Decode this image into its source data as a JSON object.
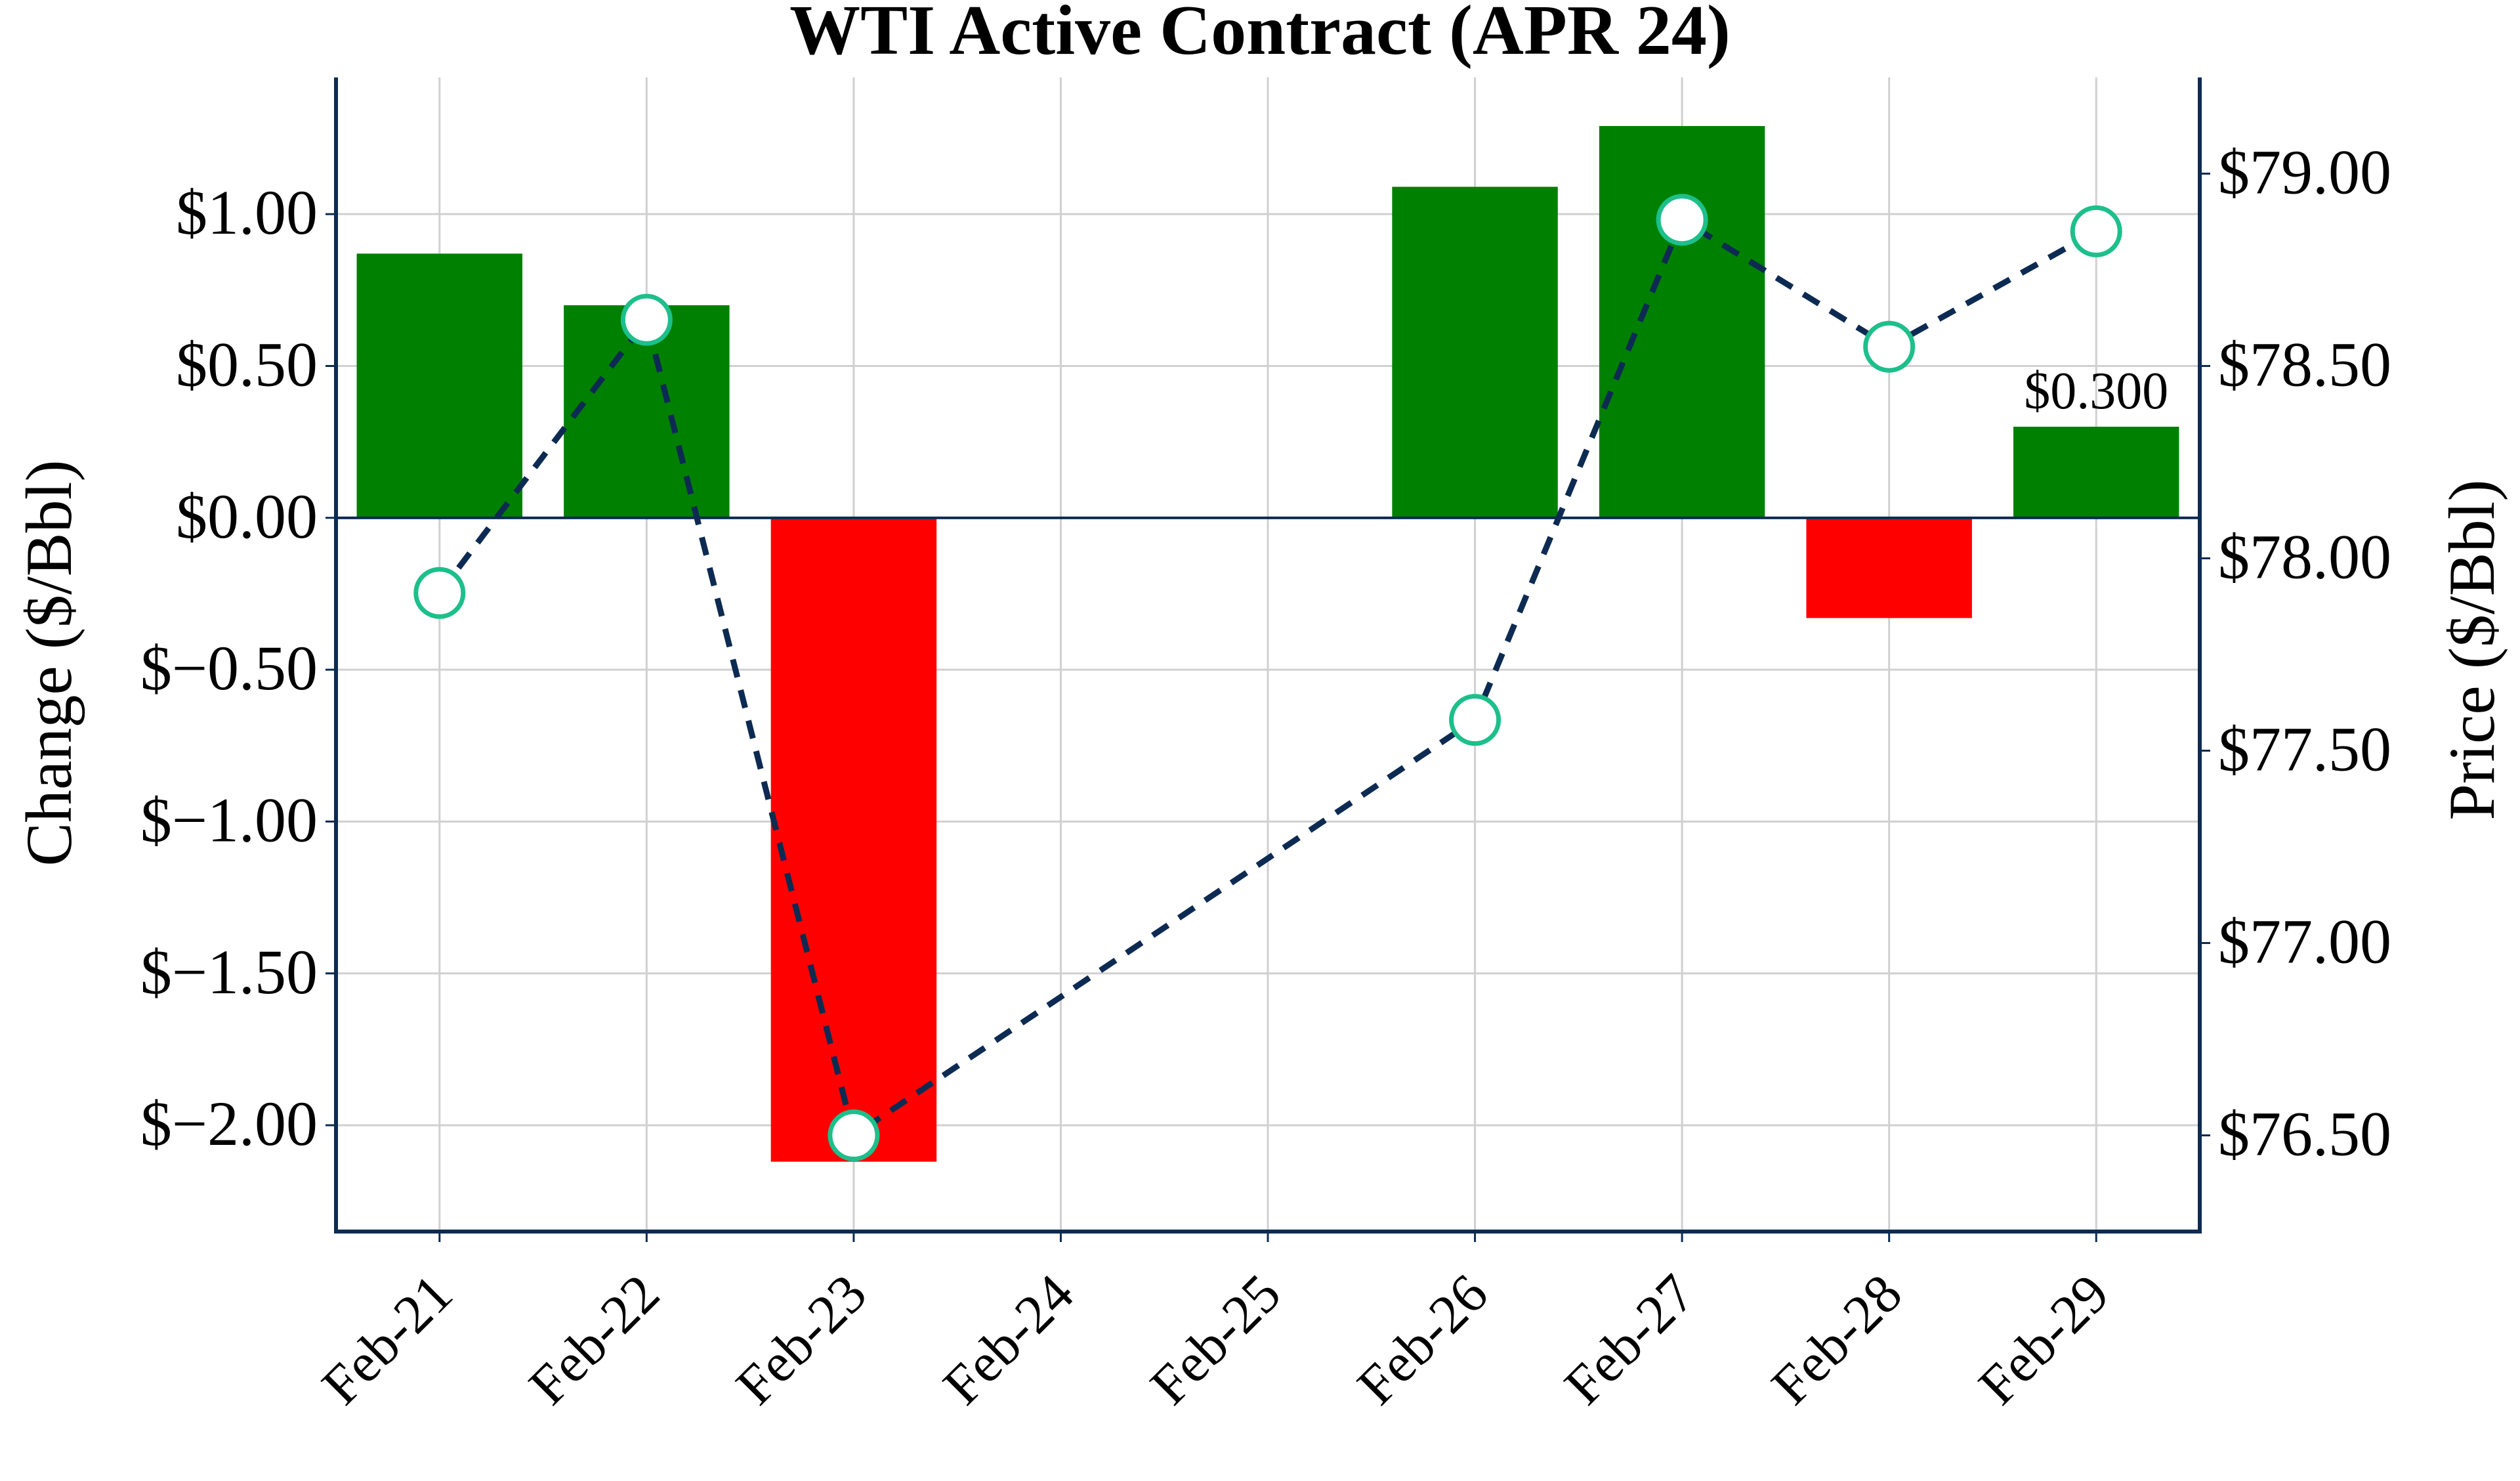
{
  "chart_data": {
    "type": "bar",
    "title": "WTI Active Contract (APR 24)",
    "categories": [
      "Feb-21",
      "Feb-22",
      "Feb-23",
      "Feb-24",
      "Feb-25",
      "Feb-26",
      "Feb-27",
      "Feb-28",
      "Feb-29"
    ],
    "ylabel": "Change ($/Bbl)",
    "y2label": "Price ($/Bbl)",
    "ylim": [
      -2.35,
      1.45
    ],
    "y2lim": [
      76.25,
      79.25
    ],
    "yticks": [
      -2.0,
      -1.5,
      -1.0,
      -0.5,
      0.0,
      0.5,
      1.0
    ],
    "ytick_labels": [
      "$−2.00",
      "$−1.50",
      "$−1.00",
      "$−0.50",
      "$0.00",
      "$0.50",
      "$1.00"
    ],
    "y2ticks": [
      76.5,
      77.0,
      77.5,
      78.0,
      78.5,
      79.0
    ],
    "y2tick_labels": [
      "$76.50",
      "$77.00",
      "$77.50",
      "$78.00",
      "$78.50",
      "$79.00"
    ],
    "grid": true,
    "series": [
      {
        "name": "Change",
        "type": "bar",
        "axis": "left",
        "values": [
          0.87,
          0.7,
          -2.12,
          null,
          null,
          1.09,
          1.29,
          -0.33,
          0.3
        ]
      },
      {
        "name": "Price",
        "type": "line",
        "axis": "right",
        "values": [
          77.91,
          78.62,
          76.5,
          null,
          null,
          77.58,
          78.88,
          78.55,
          78.85
        ]
      }
    ],
    "annotations": [
      {
        "category": "Feb-29",
        "series": "Change",
        "text": "$0.300"
      }
    ],
    "colors": {
      "positive": "#008000",
      "negative": "#ff0000",
      "line": "#0d2b52",
      "marker_edge": "#1dbf8a",
      "marker_fill": "#ffffff",
      "axis": "#0d2b52",
      "grid": "#d0d0d0",
      "text": "#000000"
    }
  }
}
